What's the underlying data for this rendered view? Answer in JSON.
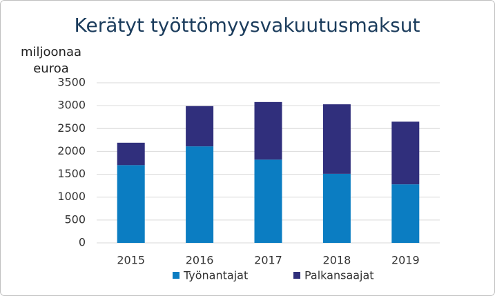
{
  "chart_data": {
    "type": "stacked-bar",
    "title": "Kerätyt työttömyysvakuutusmaksut",
    "y_label": "miljoonaa euroa",
    "categories": [
      "2015",
      "2016",
      "2017",
      "2018",
      "2019"
    ],
    "series": [
      {
        "name": "Työnantajat",
        "color": "#0b7dc2",
        "values": [
          1700,
          2110,
          1820,
          1510,
          1280
        ]
      },
      {
        "name": "Palkansaajat",
        "color": "#302f7c",
        "values": [
          490,
          880,
          1260,
          1520,
          1370
        ]
      }
    ],
    "ylim": [
      0,
      3500
    ],
    "yticks": [
      0,
      500,
      1000,
      1500,
      2000,
      2500,
      3000,
      3500
    ],
    "grid": true,
    "legend": "bottom"
  }
}
